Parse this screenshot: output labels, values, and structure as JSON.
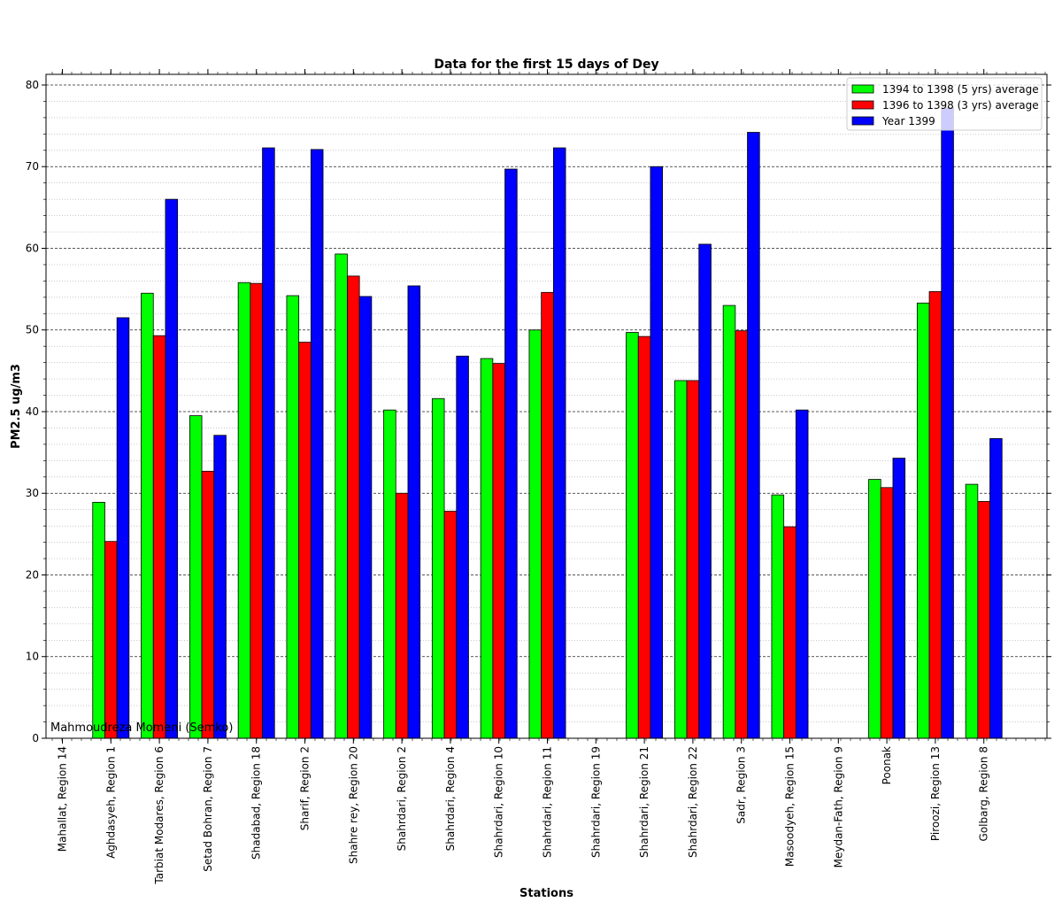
{
  "chart_data": {
    "type": "bar",
    "title": "Data for the first 15 days of Dey",
    "xlabel": "Stations",
    "ylabel": "PM2.5 ug/m3",
    "ylim": [
      0,
      81.3
    ],
    "yticks": [
      0,
      10,
      20,
      30,
      40,
      50,
      60,
      70,
      80
    ],
    "grid": "horizontal, dashed major and dotted minor",
    "legend_position": "top-right",
    "categories": [
      "Mahallat, Region 14",
      "Aghdasyeh, Region 1",
      "Tarbiat Modares, Region 6",
      "Setad Bohran, Region 7",
      "Shadabad, Region 18",
      "Sharif, Region 2",
      "Shahre rey, Region 20",
      "Shahrdari, Region 2",
      "Shahrdari, Region 4",
      "Shahrdari, Region 10",
      "Shahrdari, Region 11",
      "Shahrdari, Region 19",
      "Shahrdari, Region 21",
      "Shahrdari, Region 22",
      "Sadr, Region 3",
      "Masoodyeh, Region 15",
      "Meydan-Fath, Region 9",
      "Poonak",
      "Piroozi, Region 13",
      "Golbarg, Region 8"
    ],
    "series": [
      {
        "name": "1394 to 1398 (5 yrs) average",
        "color": "#00ff00",
        "values": [
          null,
          28.9,
          54.5,
          39.5,
          55.8,
          54.2,
          59.3,
          40.2,
          41.6,
          46.5,
          50.0,
          null,
          49.7,
          43.8,
          53.0,
          29.8,
          null,
          31.7,
          53.3,
          31.1
        ]
      },
      {
        "name": "1396 to 1398 (3 yrs) average",
        "color": "#ff0000",
        "values": [
          null,
          24.1,
          49.3,
          32.7,
          55.7,
          48.5,
          56.6,
          30.0,
          27.8,
          45.9,
          54.6,
          null,
          49.2,
          43.8,
          49.9,
          25.9,
          null,
          30.7,
          54.7,
          29.0
        ]
      },
      {
        "name": "Year 1399",
        "color": "#0000ff",
        "values": [
          null,
          51.5,
          66.0,
          37.1,
          72.3,
          72.1,
          54.1,
          55.4,
          46.8,
          69.7,
          72.3,
          null,
          70.0,
          60.5,
          74.2,
          40.2,
          null,
          34.3,
          77.2,
          36.7
        ]
      }
    ],
    "watermark": "Mahmoudreza Momeni (Semko)"
  }
}
